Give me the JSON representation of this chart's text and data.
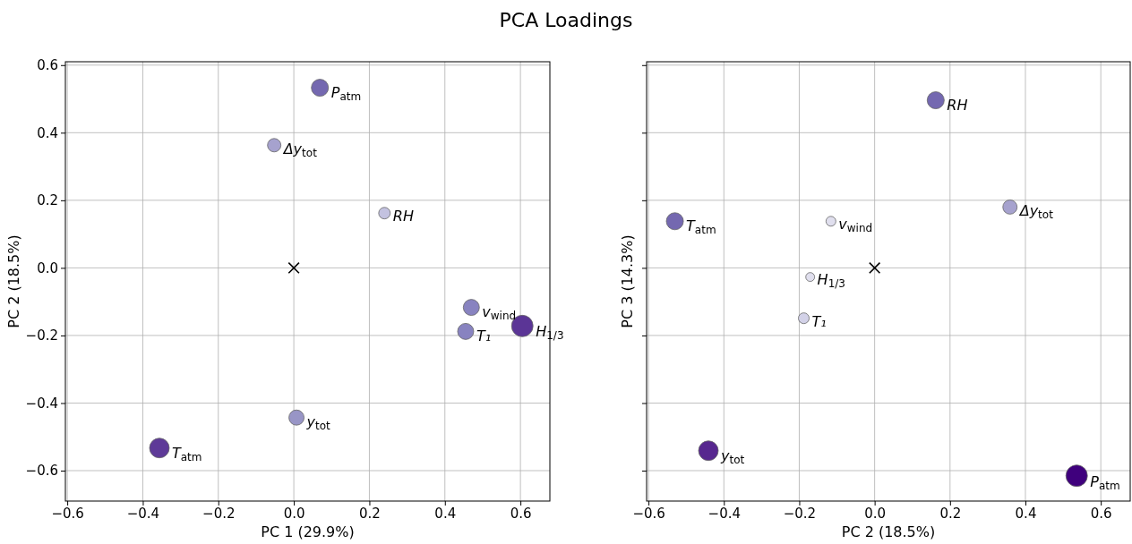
{
  "chart_data": [
    {
      "type": "bubble",
      "title": "PCA Loadings",
      "xlabel": "PC 1 (29.9%)",
      "ylabel": "PC 2 (18.5%)",
      "xlim": [
        -0.605,
        0.678
      ],
      "ylim": [
        -0.69,
        0.61
      ],
      "xticks": [
        {
          "value": -0.6,
          "label": "−0.6"
        },
        {
          "value": -0.4,
          "label": "−0.4"
        },
        {
          "value": -0.2,
          "label": "−0.2"
        },
        {
          "value": 0,
          "label": "0.0"
        },
        {
          "value": 0.2,
          "label": "0.2"
        },
        {
          "value": 0.4,
          "label": "0.4"
        },
        {
          "value": 0.6,
          "label": "0.6"
        }
      ],
      "yticks": [
        {
          "value": -0.6,
          "label": "−0.6"
        },
        {
          "value": -0.4,
          "label": "−0.4"
        },
        {
          "value": -0.2,
          "label": "−0.2"
        },
        {
          "value": 0,
          "label": "0.0"
        },
        {
          "value": 0.2,
          "label": "0.2"
        },
        {
          "value": 0.4,
          "label": "0.4"
        },
        {
          "value": 0.6,
          "label": "0.6"
        }
      ],
      "grid": true,
      "series": [
        {
          "x": [
            0.069,
            -0.052,
            0.24,
            0.47,
            0.455,
            0.605,
            0.007,
            -0.356
          ],
          "values": [
            0.533,
            0.363,
            0.162,
            -0.117,
            -0.188,
            -0.172,
            -0.443,
            -0.533
          ],
          "sizes": [
            0.63,
            0.39,
            0.29,
            0.56,
            0.56,
            1,
            0.5,
            0.84
          ],
          "colors": [
            "#7468b0",
            "#a6a2ce",
            "#c3c2e0",
            "#8883c0",
            "#8883c0",
            "#5b3596",
            "#9895c6",
            "#5e3a98"
          ]
        },
        {
          "type": "scatter",
          "marker": "cross",
          "color": "#000000",
          "x": [
            0
          ],
          "values": [
            0
          ]
        }
      ],
      "annotations": [
        {
          "text": "P$_{atm}$",
          "x": 0.069,
          "y": 0.533
        },
        {
          "text": "Δy$_{tot}$",
          "x": -0.052,
          "y": 0.363
        },
        {
          "text": "RH",
          "x": 0.24,
          "y": 0.162
        },
        {
          "text": "v$_{wind}$",
          "x": 0.47,
          "y": -0.117
        },
        {
          "text": "T₁",
          "x": 0.455,
          "y": -0.188
        },
        {
          "text": "H$_{1/3}$",
          "x": 0.605,
          "y": -0.172
        },
        {
          "text": "y$_{tot}$",
          "x": 0.007,
          "y": -0.443
        },
        {
          "text": "T$_{atm}$",
          "x": -0.356,
          "y": -0.533
        }
      ]
    },
    {
      "type": "bubble",
      "xlabel": "PC 2 (18.5%)",
      "ylabel": "PC 3 (14.3%)",
      "tick_labels": "x",
      "xlim": [
        -0.605,
        0.678
      ],
      "ylim": [
        -0.69,
        0.61
      ],
      "xticks": [
        {
          "value": -0.6,
          "label": "−0.6"
        },
        {
          "value": -0.4,
          "label": "−0.4"
        },
        {
          "value": -0.2,
          "label": "−0.2"
        },
        {
          "value": 0,
          "label": "0.0"
        },
        {
          "value": 0.2,
          "label": "0.2"
        },
        {
          "value": 0.4,
          "label": "0.4"
        },
        {
          "value": 0.6,
          "label": "0.6"
        }
      ],
      "yticks": [
        {
          "value": -0.6,
          "label": null
        },
        {
          "value": -0.4,
          "label": null
        },
        {
          "value": -0.2,
          "label": null
        },
        {
          "value": 0,
          "label": null
        },
        {
          "value": 0.2,
          "label": null
        },
        {
          "value": 0.4,
          "label": null
        },
        {
          "value": 0.6,
          "label": null
        }
      ],
      "grid": true,
      "series": [
        {
          "x": [
            0.162,
            0.359,
            -0.53,
            -0.116,
            -0.171,
            -0.188,
            -0.441,
            0.536
          ],
          "values": [
            0.496,
            0.18,
            0.138,
            0.138,
            -0.027,
            -0.149,
            -0.541,
            -0.615
          ],
          "sizes": [
            0.63,
            0.44,
            0.63,
            0.21,
            0.17,
            0.25,
            0.84,
            1
          ],
          "colors": [
            "#7468b0",
            "#a6a2ce",
            "#7468b0",
            "#e0dfee",
            "#e0dfee",
            "#d3d2e8",
            "#57278f",
            "#3f007d"
          ]
        },
        {
          "type": "scatter",
          "marker": "cross",
          "color": "#000000",
          "x": [
            0
          ],
          "values": [
            0
          ]
        }
      ],
      "annotations": [
        {
          "text": "RH",
          "x": 0.162,
          "y": 0.496
        },
        {
          "text": "Δy$_{tot}$",
          "x": 0.359,
          "y": 0.18
        },
        {
          "text": "T$_{atm}$",
          "x": -0.53,
          "y": 0.138
        },
        {
          "text": "v$_{wind}$",
          "x": -0.116,
          "y": 0.138
        },
        {
          "text": "H$_{1/3}$",
          "x": -0.171,
          "y": -0.027
        },
        {
          "text": "T₁",
          "x": -0.188,
          "y": -0.149
        },
        {
          "text": "y$_{tot}$",
          "x": -0.441,
          "y": -0.541
        },
        {
          "text": "P$_{atm}$",
          "x": 0.536,
          "y": -0.615
        }
      ]
    }
  ]
}
